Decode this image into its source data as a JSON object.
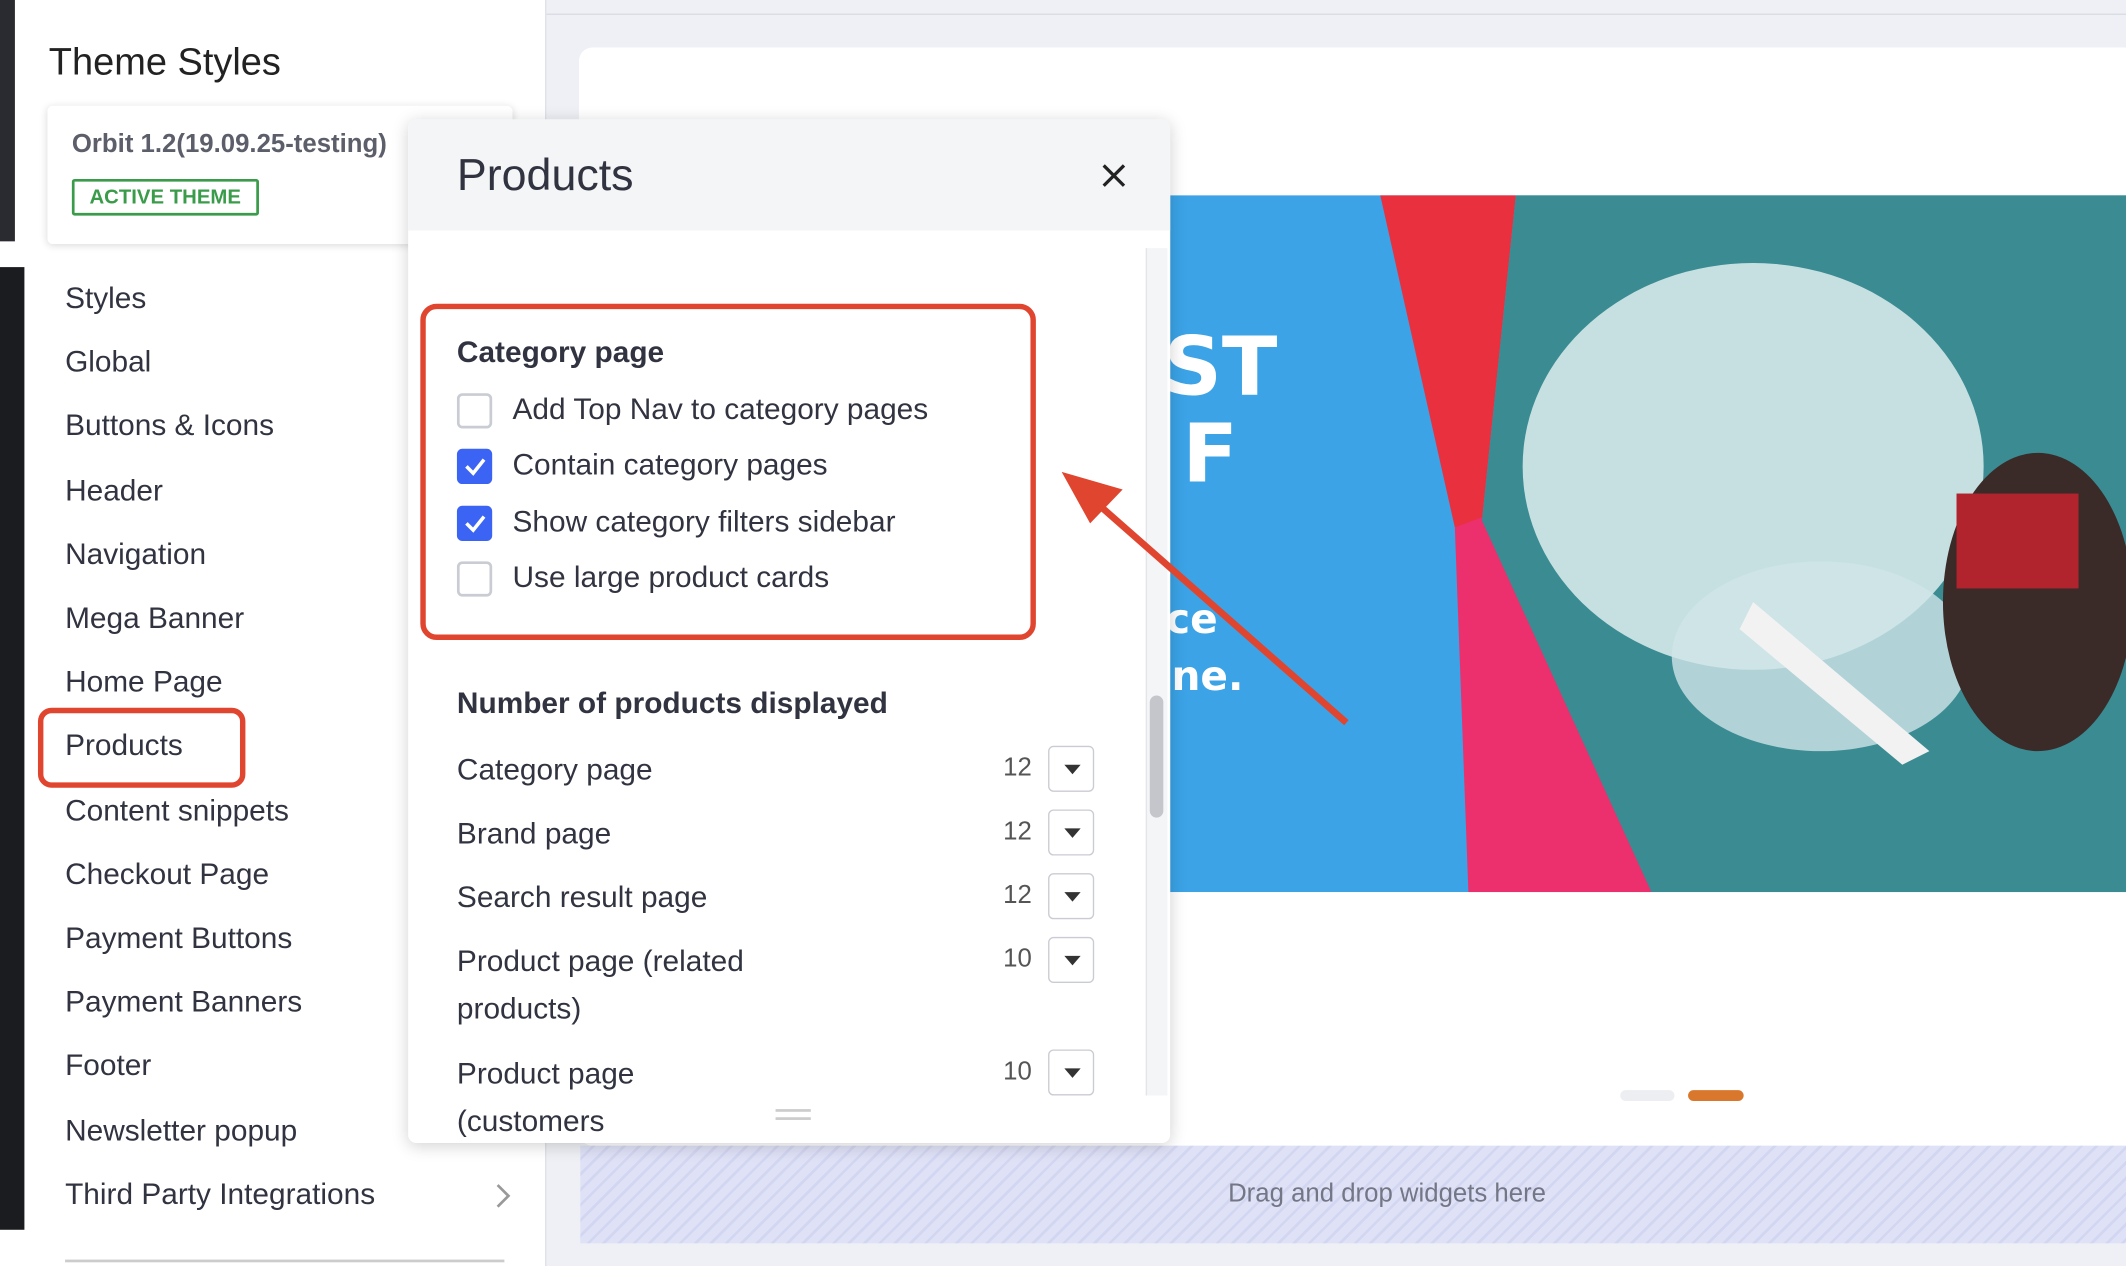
{
  "sidebar": {
    "title": "Theme Styles",
    "theme_name": "Orbit 1.2(19.09.25-testing)",
    "badge": "ACTIVE THEME",
    "menu": [
      "Styles",
      "Global",
      "Buttons & Icons",
      "Header",
      "Navigation",
      "Mega Banner",
      "Home Page",
      "Products",
      "Content snippets",
      "Checkout Page",
      "Payment Buttons",
      "Payment Banners",
      "Footer",
      "Newsletter popup",
      "Third Party Integrations"
    ]
  },
  "panel": {
    "title": "Products",
    "category_section": {
      "title": "Category page",
      "options": [
        {
          "label": "Add Top Nav to category pages",
          "checked": false
        },
        {
          "label": "Contain category pages",
          "checked": true
        },
        {
          "label": "Show category filters sidebar",
          "checked": true
        },
        {
          "label": "Use large product cards",
          "checked": false
        }
      ]
    },
    "count_section": {
      "title": "Number of products displayed",
      "rows": [
        {
          "label": "Category page",
          "value": 12
        },
        {
          "label": "Brand page",
          "value": 12
        },
        {
          "label": "Search result page",
          "value": 12
        },
        {
          "label": "Product page (related products)",
          "value": 10
        },
        {
          "label": "Product page (customers",
          "value": 10
        }
      ]
    }
  },
  "banner": {
    "texts": [
      "ST",
      "F",
      "ce",
      "ne."
    ]
  },
  "drop_zone": "Drag and drop widgets here"
}
